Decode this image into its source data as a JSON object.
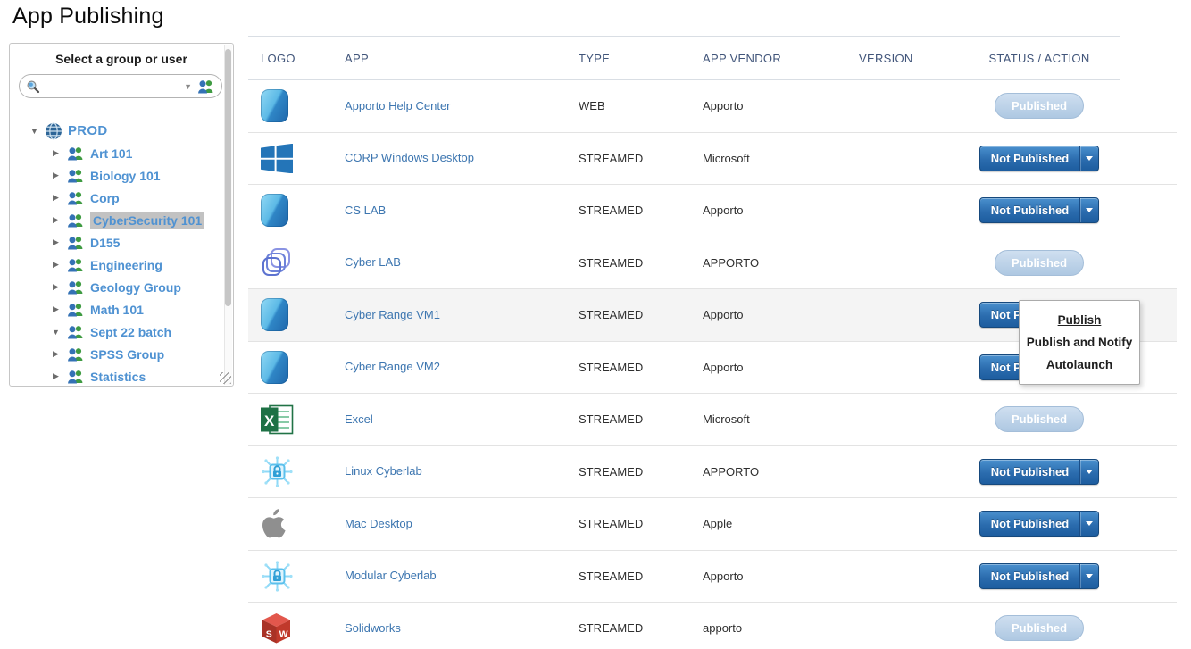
{
  "page": {
    "title": "App Publishing"
  },
  "sidebar": {
    "header": "Select a group or user",
    "search": {
      "value": "",
      "icons": [
        "search-icon",
        "dropdown-caret",
        "users-icon"
      ]
    },
    "tree": {
      "root": {
        "label": "PROD",
        "icon": "globe",
        "expanded": true
      },
      "items": [
        {
          "label": "Art 101",
          "icon": "people",
          "expanded": false,
          "selected": false
        },
        {
          "label": "Biology 101",
          "icon": "people",
          "expanded": false,
          "selected": false
        },
        {
          "label": "Corp",
          "icon": "people",
          "expanded": false,
          "selected": false
        },
        {
          "label": "CyberSecurity 101",
          "icon": "people",
          "expanded": false,
          "selected": true
        },
        {
          "label": "D155",
          "icon": "people",
          "expanded": false,
          "selected": false
        },
        {
          "label": "Engineering",
          "icon": "people",
          "expanded": false,
          "selected": false
        },
        {
          "label": "Geology Group",
          "icon": "people",
          "expanded": false,
          "selected": false
        },
        {
          "label": "Math 101",
          "icon": "people",
          "expanded": false,
          "selected": false
        },
        {
          "label": "Sept 22 batch",
          "icon": "people",
          "expanded": true,
          "selected": false
        },
        {
          "label": "SPSS Group",
          "icon": "people",
          "expanded": false,
          "selected": false
        },
        {
          "label": "Statistics",
          "icon": "people",
          "expanded": false,
          "selected": false
        },
        {
          "label": "",
          "icon": "people",
          "expanded": false,
          "selected": false
        }
      ]
    }
  },
  "table": {
    "columns": [
      "LOGO",
      "APP",
      "TYPE",
      "APP VENDOR",
      "VERSION",
      "STATUS / ACTION"
    ],
    "rows": [
      {
        "logo": "apporto",
        "app": "Apporto Help Center",
        "type": "WEB",
        "vendor": "Apporto",
        "version": "",
        "status": "Published",
        "published": true,
        "highlighted": false
      },
      {
        "logo": "windows",
        "app": "CORP Windows Desktop",
        "type": "STREAMED",
        "vendor": "Microsoft",
        "version": "",
        "status": "Not Published",
        "published": false,
        "highlighted": false
      },
      {
        "logo": "apporto",
        "app": "CS LAB",
        "type": "STREAMED",
        "vendor": "Apporto",
        "version": "",
        "status": "Not Published",
        "published": false,
        "highlighted": false
      },
      {
        "logo": "cyberlab",
        "app": "Cyber LAB",
        "type": "STREAMED",
        "vendor": "APPORTO",
        "version": "",
        "status": "Published",
        "published": true,
        "highlighted": false
      },
      {
        "logo": "apporto",
        "app": "Cyber Range VM1",
        "type": "STREAMED",
        "vendor": "Apporto",
        "version": "",
        "status": "Not Published",
        "published": false,
        "highlighted": true
      },
      {
        "logo": "apporto",
        "app": "Cyber Range VM2",
        "type": "STREAMED",
        "vendor": "Apporto",
        "version": "",
        "status": "Not Published",
        "published": false,
        "highlighted": false
      },
      {
        "logo": "excel",
        "app": "Excel",
        "type": "STREAMED",
        "vendor": "Microsoft",
        "version": "",
        "status": "Published",
        "published": true,
        "highlighted": false
      },
      {
        "logo": "cyberlock",
        "app": "Linux Cyberlab",
        "type": "STREAMED",
        "vendor": "APPORTO",
        "version": "",
        "status": "Not Published",
        "published": false,
        "highlighted": false
      },
      {
        "logo": "apple",
        "app": "Mac Desktop",
        "type": "STREAMED",
        "vendor": "Apple",
        "version": "",
        "status": "Not Published",
        "published": false,
        "highlighted": false
      },
      {
        "logo": "cyberlock",
        "app": "Modular Cyberlab",
        "type": "STREAMED",
        "vendor": "Apporto",
        "version": "",
        "status": "Not Published",
        "published": false,
        "highlighted": false
      },
      {
        "logo": "solidworks",
        "app": "Solidworks",
        "type": "STREAMED",
        "vendor": "apporto",
        "version": "",
        "status": "Published",
        "published": true,
        "highlighted": false
      }
    ]
  },
  "context_menu": {
    "items": [
      {
        "label": "Publish",
        "hovered": true
      },
      {
        "label": "Publish and Notify",
        "hovered": false
      },
      {
        "label": "Autolaunch",
        "hovered": false
      }
    ]
  },
  "colors": {
    "link_blue": "#3d76b0",
    "tree_blue": "#4f92d2",
    "button_blue": "#2b6cae",
    "published_badge": "#aec8e2",
    "header_text": "#41557a",
    "selected_highlight": "#c2c2c2"
  }
}
